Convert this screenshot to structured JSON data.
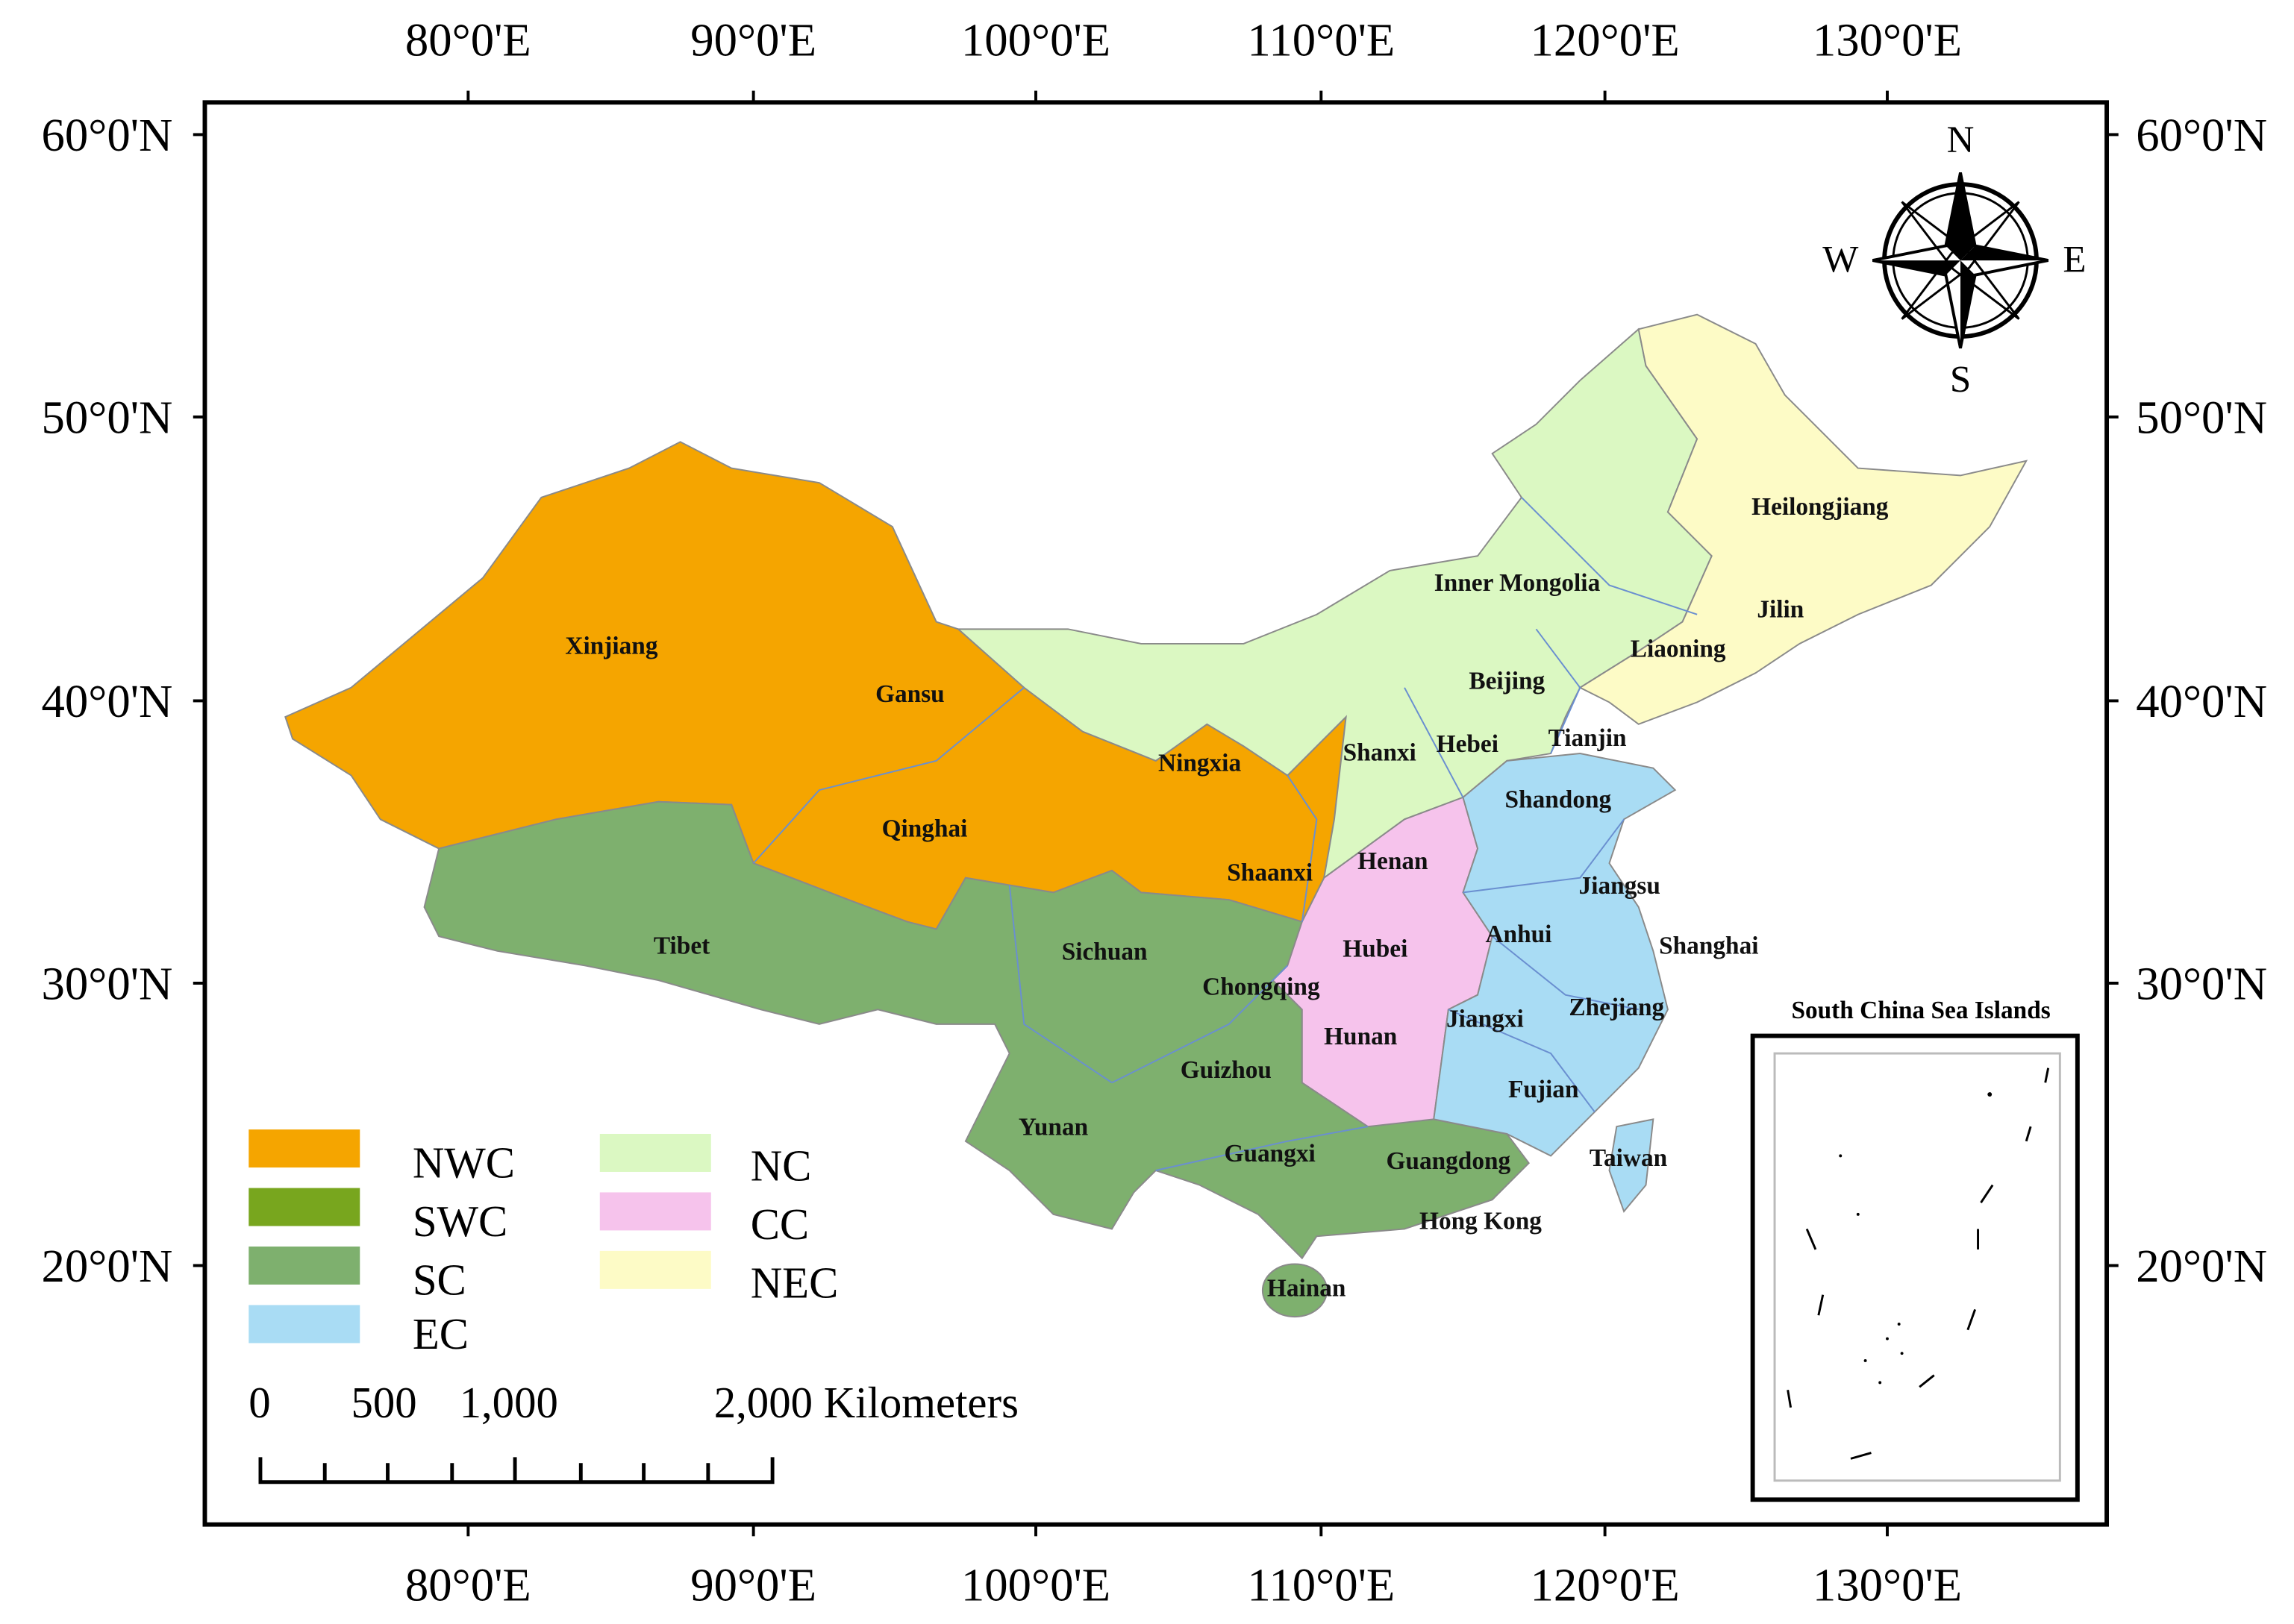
{
  "axes": {
    "top": [
      "80°0'E",
      "90°0'E",
      "100°0'E",
      "110°0'E",
      "120°0'E",
      "130°0'E"
    ],
    "bottom": [
      "80°0'E",
      "90°0'E",
      "100°0'E",
      "110°0'E",
      "120°0'E",
      "130°0'E"
    ],
    "left": [
      "60°0'N",
      "50°0'N",
      "40°0'N",
      "30°0'N",
      "20°0'N"
    ],
    "right": [
      "60°0'N",
      "50°0'N",
      "40°0'N",
      "30°0'N",
      "20°0'N"
    ]
  },
  "compass": {
    "n": "N",
    "s": "S",
    "w": "W",
    "e": "E"
  },
  "regions": [
    "Xinjiang",
    "Gansu",
    "Qinghai",
    "Ningxia",
    "Shaanxi",
    "Tibet",
    "Sichuan",
    "Chongqing",
    "Yunan",
    "Guizhou",
    "Guangxi",
    "Guangdong",
    "Hong Kong",
    "Hainan",
    "Inner Mongolia",
    "Shanxi",
    "Hebei",
    "Beijing",
    "Tianjin",
    "Heilongjiang",
    "Jilin",
    "Liaoning",
    "Shandong",
    "Henan",
    "Hubei",
    "Hunan",
    "Jiangsu",
    "Anhui",
    "Shanghai",
    "Jiangxi",
    "Zhejiang",
    "Fujian",
    "Taiwan"
  ],
  "legend": [
    {
      "label": "NWC",
      "color": "#f5a500"
    },
    {
      "label": "SWC",
      "color": "#78a61e"
    },
    {
      "label": "SC",
      "color": "#7eb06e"
    },
    {
      "label": "EC",
      "color": "#a9dcf4"
    },
    {
      "label": "NC",
      "color": "#dbf8c2"
    },
    {
      "label": "CC",
      "color": "#f6c3ec"
    },
    {
      "label": "NEC",
      "color": "#fdfbc6"
    }
  ],
  "scale_bar": [
    "0",
    "500",
    "1,000",
    "2,000 Kilometers"
  ],
  "inset_title": "South China Sea Islands"
}
